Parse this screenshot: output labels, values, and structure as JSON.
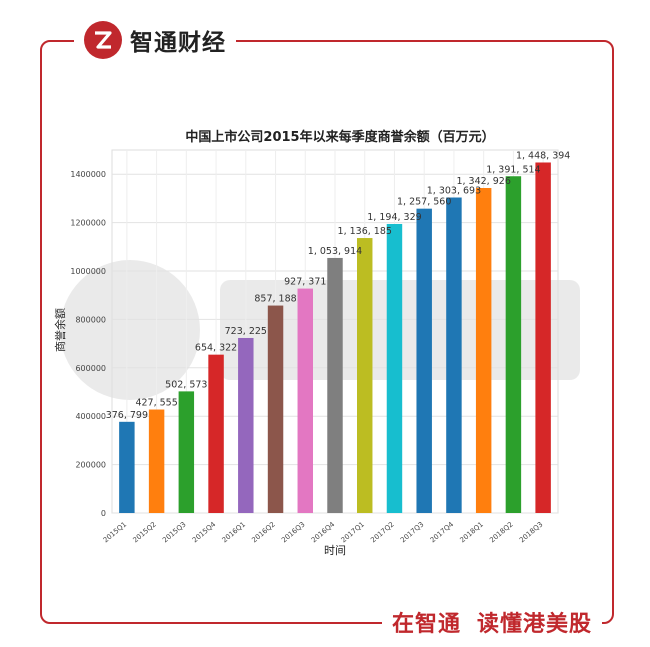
{
  "brand": {
    "name": "智通财经"
  },
  "slogan": {
    "part1": "在智通",
    "part2": "读懂港美股"
  },
  "colors": {
    "accent": "#c0282d"
  },
  "chart_data": {
    "type": "bar",
    "title": "中国上市公司2015年以来每季度商誉余额（百万元）",
    "xlabel": "时间",
    "ylabel": "商誉余额",
    "ylim": [
      0,
      1500000
    ],
    "yticks": [
      0,
      200000,
      400000,
      600000,
      800000,
      1000000,
      1200000,
      1400000
    ],
    "ytick_labels": [
      "0",
      "200000",
      "400000",
      "600000",
      "800000",
      "1000000",
      "1200000",
      "1400000"
    ],
    "grid": true,
    "categories": [
      "2015Q1",
      "2015Q2",
      "2015Q3",
      "2015Q4",
      "2016Q1",
      "2016Q2",
      "2016Q3",
      "2016Q4",
      "2017Q1",
      "2017Q2",
      "2017Q3",
      "2017Q4",
      "2018Q1",
      "2018Q2",
      "2018Q3"
    ],
    "values": [
      376799,
      427555,
      502573,
      654322,
      723225,
      857188,
      927371,
      1053914,
      1136185,
      1194329,
      1257560,
      1303693,
      1342926,
      1391514,
      1448394
    ],
    "value_labels": [
      "376, 799",
      "427, 555",
      "502, 573",
      "654, 322",
      "723, 225",
      "857, 188",
      "927, 371",
      "1, 053, 914",
      "1, 136, 185",
      "1, 194, 329",
      "1, 257, 560",
      "1, 303, 693",
      "1, 342, 926",
      "1, 391, 514",
      "1, 448, 394"
    ],
    "bar_colors": [
      "#1f77b4",
      "#ff7f0e",
      "#2ca02c",
      "#d62728",
      "#9467bd",
      "#8c564b",
      "#e377c2",
      "#7f7f7f",
      "#bcbd22",
      "#17becf",
      "#1f77b4",
      "#1f77b4",
      "#ff7f0e",
      "#2ca02c",
      "#d62728"
    ]
  }
}
